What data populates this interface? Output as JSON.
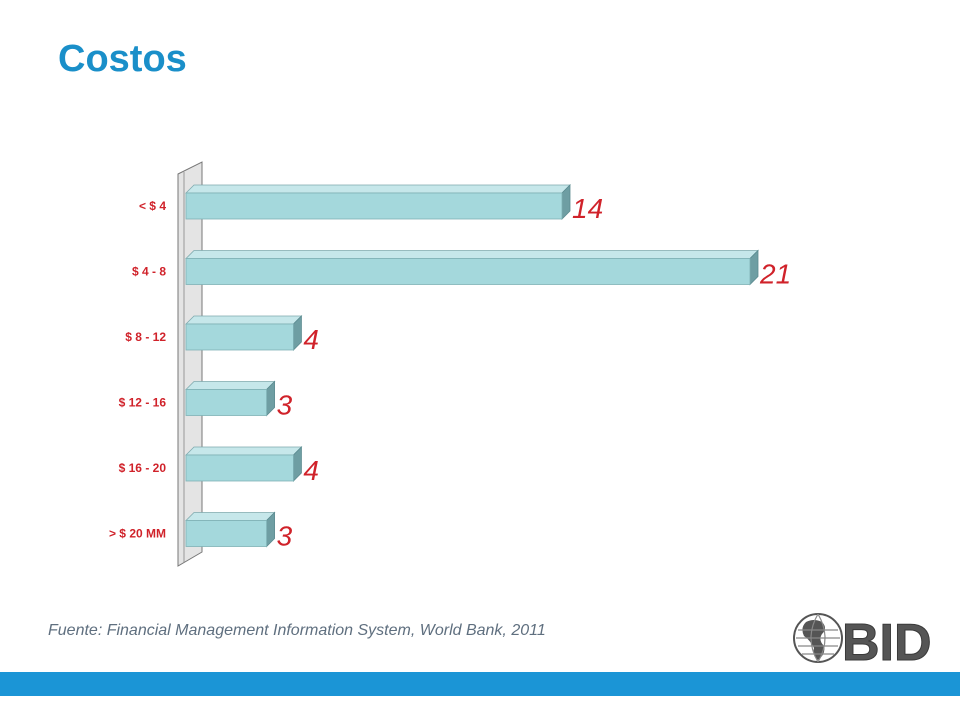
{
  "title": "Costos",
  "source": "Fuente: Financial Management Information System, World Bank, 2011",
  "logo_text": "BID",
  "colors": {
    "title": "#1a8fc9",
    "category_label": "#d0222a",
    "value_label": "#d0222a",
    "bar_face": "#a4d8dc",
    "bar_top": "#c6e7ea",
    "bar_side": "#6e9ea3",
    "footer": "#1b95d6"
  },
  "chart_data": {
    "type": "bar",
    "orientation": "horizontal",
    "categories": [
      "< $ 4",
      "$ 4 - 8",
      "$ 8 - 12",
      "$ 12 - 16",
      "$ 16 - 20",
      "> $ 20 MM"
    ],
    "values": [
      14,
      21,
      4,
      3,
      4,
      3
    ],
    "data_labels": [
      "14",
      "21",
      "4",
      "3",
      "4",
      "3"
    ],
    "xlim": [
      0,
      21
    ],
    "grid": false,
    "legend": "none",
    "style": "3d"
  }
}
